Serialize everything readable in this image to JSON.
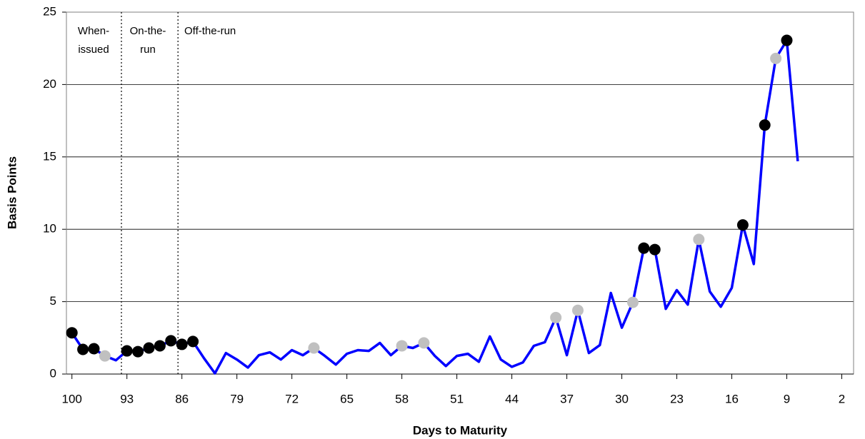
{
  "chart_data": {
    "type": "line",
    "x_label": "Days to Maturity",
    "y_label": "Basis Points",
    "xlim": [
      100.7,
      0.5
    ],
    "ylim": [
      0,
      25
    ],
    "xticks": [
      100,
      93,
      86,
      79,
      72,
      65,
      58,
      51,
      44,
      37,
      30,
      23,
      16,
      9,
      2
    ],
    "yticks": [
      0,
      5,
      10,
      15,
      20,
      25
    ],
    "grid": true,
    "vlines": [
      93.7,
      86.5
    ],
    "annotations": [
      {
        "lines": [
          "When-",
          "issued"
        ]
      },
      {
        "lines": [
          "On-the-",
          "run"
        ]
      },
      {
        "lines": [
          "Off-the-run"
        ]
      }
    ],
    "x": [
      100,
      98.6,
      97.2,
      95.8,
      94.4,
      93,
      91.6,
      90.2,
      88.8,
      87.4,
      86,
      84.6,
      83.2,
      81.8,
      80.4,
      79,
      77.6,
      76.2,
      74.8,
      73.4,
      72,
      70.6,
      69.2,
      67.8,
      66.4,
      65,
      63.6,
      62.2,
      60.8,
      59.4,
      58,
      56.6,
      55.2,
      53.8,
      52.4,
      51,
      49.6,
      48.2,
      46.8,
      45.4,
      44,
      42.6,
      41.2,
      39.8,
      38.4,
      37,
      35.6,
      34.2,
      32.8,
      31.4,
      30,
      28.6,
      27.2,
      25.8,
      24.4,
      23,
      21.6,
      20.2,
      18.8,
      17.4,
      16,
      14.6,
      13.2,
      11.8,
      10.4,
      9,
      7.6
    ],
    "series": [
      {
        "color": "#0000ff",
        "values": [
          2.85,
          1.7,
          1.75,
          1.25,
          0.95,
          1.6,
          1.55,
          1.8,
          1.95,
          2.3,
          2.05,
          2.25,
          1.1,
          0.05,
          1.45,
          1.0,
          0.45,
          1.3,
          1.5,
          1.0,
          1.65,
          1.3,
          1.8,
          1.25,
          0.65,
          1.4,
          1.65,
          1.6,
          2.15,
          1.3,
          1.95,
          1.8,
          2.15,
          1.25,
          0.55,
          1.25,
          1.4,
          0.85,
          2.6,
          1.0,
          0.5,
          0.8,
          1.95,
          2.2,
          3.9,
          1.3,
          4.4,
          1.45,
          2.0,
          5.6,
          3.2,
          4.95,
          8.7,
          8.6,
          4.5,
          5.8,
          4.8,
          9.3,
          5.7,
          4.65,
          5.95,
          10.3,
          7.6,
          17.2,
          21.8,
          23.05,
          14.7
        ],
        "marker_colors": [
          "#000000",
          "#000000",
          "#000000",
          "#c0c0c0",
          null,
          "#000000",
          "#000000",
          "#000000",
          "#000000",
          "#000000",
          "#000000",
          "#000000",
          null,
          null,
          null,
          null,
          null,
          null,
          null,
          null,
          null,
          null,
          "#c0c0c0",
          null,
          null,
          null,
          null,
          null,
          null,
          null,
          "#c0c0c0",
          null,
          "#c0c0c0",
          null,
          null,
          null,
          null,
          null,
          null,
          null,
          null,
          null,
          null,
          null,
          "#c0c0c0",
          null,
          "#c0c0c0",
          null,
          null,
          null,
          null,
          "#c0c0c0",
          "#000000",
          "#000000",
          null,
          null,
          null,
          "#c0c0c0",
          null,
          null,
          null,
          "#000000",
          null,
          "#000000",
          "#c0c0c0",
          "#000000",
          null
        ]
      }
    ]
  }
}
